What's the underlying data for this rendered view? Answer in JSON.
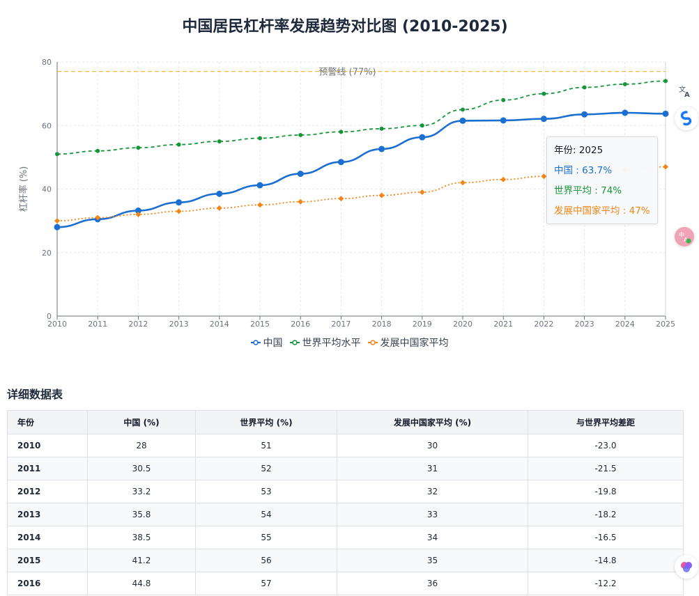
{
  "chart_data": {
    "type": "line",
    "title": "中国居民杠杆率发展趋势对比图 (2010-2025)",
    "ylabel": "杠杆率 (%)",
    "xlabel": "",
    "ylim": [
      0,
      80
    ],
    "y_ticks": [
      "0",
      "20",
      "40",
      "60",
      "80"
    ],
    "categories": [
      "2010",
      "2011",
      "2012",
      "2013",
      "2014",
      "2015",
      "2016",
      "2017",
      "2018",
      "2019",
      "2020",
      "2021",
      "2022",
      "2023",
      "2024",
      "2025"
    ],
    "series": [
      {
        "name": "中国",
        "color": "#1a6fd1",
        "style": "solid",
        "values": [
          28,
          30.5,
          33.2,
          35.8,
          38.5,
          41.2,
          44.8,
          48.5,
          52.6,
          56.3,
          61.5,
          61.6,
          62.1,
          63.5,
          64,
          63.7
        ]
      },
      {
        "name": "世界平均水平",
        "color": "#16953a",
        "style": "dashed",
        "values": [
          51,
          52,
          53,
          54,
          55,
          56,
          57,
          58,
          59,
          60,
          65,
          68,
          70,
          72,
          73,
          74
        ]
      },
      {
        "name": "发展中国家平均",
        "color": "#f28518",
        "style": "dotted",
        "values": [
          30,
          31,
          32,
          33,
          34,
          35,
          36,
          37,
          38,
          39,
          42,
          43,
          44,
          45,
          46,
          47
        ]
      }
    ],
    "reference_line": {
      "value": 77,
      "label": "预警线 (77%)",
      "color": "#f0b429"
    },
    "grid": true,
    "legend_position": "bottom"
  },
  "tooltip": {
    "year_line": "年份: 2025",
    "lines": [
      "中国 : 63.7%",
      "世界平均 : 74%",
      "发展中国家平均 : 47%"
    ],
    "colors": [
      "#1a6fd1",
      "#16953a",
      "#f28518"
    ]
  },
  "table": {
    "title": "详细数据表",
    "headers": [
      "年份",
      "中国 (%)",
      "世界平均 (%)",
      "发展中国家平均 (%)",
      "与世界平均差距"
    ],
    "rows": [
      [
        "2010",
        "28",
        "51",
        "30",
        "-23.0"
      ],
      [
        "2011",
        "30.5",
        "52",
        "31",
        "-21.5"
      ],
      [
        "2012",
        "33.2",
        "53",
        "32",
        "-19.8"
      ],
      [
        "2013",
        "35.8",
        "54",
        "33",
        "-18.2"
      ],
      [
        "2014",
        "38.5",
        "55",
        "34",
        "-16.5"
      ],
      [
        "2015",
        "41.2",
        "56",
        "35",
        "-14.8"
      ],
      [
        "2016",
        "44.8",
        "57",
        "36",
        "-12.2"
      ]
    ]
  },
  "side_icons": [
    "translate-icon",
    "assistant-icon",
    "dictionary-icon",
    "brain-icon"
  ]
}
